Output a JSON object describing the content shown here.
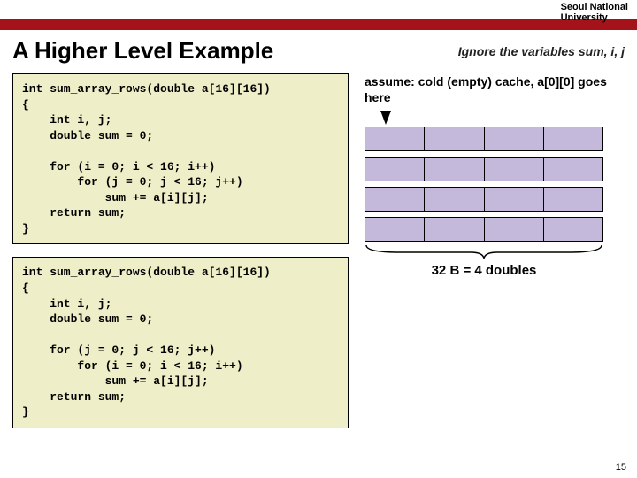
{
  "colors": {
    "red_bar": "#a4131a",
    "code_bg": "#eeeec8",
    "cache_fill": "#c5b9db"
  },
  "header": {
    "university_line1": "Seoul National",
    "university_line2": "University"
  },
  "title": "A Higher Level Example",
  "note_right": "Ignore the variables sum, i, j",
  "assume_text": "assume: cold (empty) cache, a[0][0] goes here",
  "code1": "int sum_array_rows(double a[16][16])\n{\n    int i, j;\n    double sum = 0;\n\n    for (i = 0; i < 16; i++)\n        for (j = 0; j < 16; j++)\n            sum += a[i][j];\n    return sum;\n}",
  "code2": "int sum_array_rows(double a[16][16])\n{\n    int i, j;\n    double sum = 0;\n\n    for (j = 0; j < 16; j++)\n        for (i = 0; i < 16; i++)\n            sum += a[i][j];\n    return sum;\n}",
  "cache": {
    "rows": 4,
    "cols": 4
  },
  "brace_label": "32 B = 4 doubles",
  "page_number": "15"
}
